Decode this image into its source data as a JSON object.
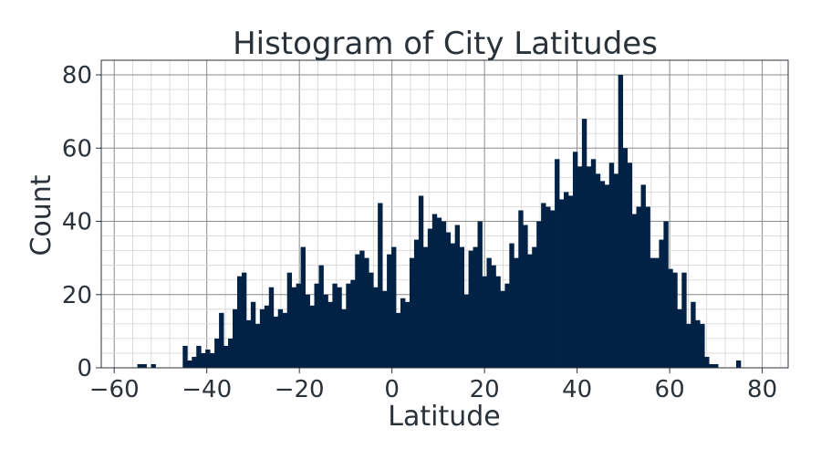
{
  "chart_data": {
    "type": "bar",
    "title": "Histogram of City Latitudes",
    "xlabel": "Latitude",
    "ylabel": "Count",
    "xlim": [
      -62.8,
      85.6
    ],
    "ylim": [
      0,
      84
    ],
    "xticks": [
      -60,
      -40,
      -20,
      0,
      20,
      40,
      60,
      80
    ],
    "xtick_labels": [
      "−60",
      "−40",
      "−20",
      "0",
      "20",
      "40",
      "60",
      "80"
    ],
    "yticks": [
      0,
      20,
      40,
      60,
      80
    ],
    "ytick_labels": [
      "0",
      "20",
      "40",
      "60",
      "80"
    ],
    "grid": true,
    "bar_color": "#012245",
    "bins": {
      "start": -55.0,
      "width": 0.98,
      "counts": [
        1,
        1,
        0,
        1,
        0,
        0,
        0,
        0,
        0,
        0,
        6,
        2,
        3,
        6,
        4,
        5,
        4,
        8,
        15,
        6,
        8,
        16,
        25,
        26,
        13,
        18,
        12,
        16,
        17,
        22,
        14,
        16,
        15,
        26,
        22,
        23,
        33,
        20,
        17,
        23,
        28,
        20,
        18,
        23,
        22,
        16,
        23,
        24,
        31,
        32,
        30,
        26,
        22,
        45,
        21,
        31,
        33,
        15,
        19,
        18,
        30,
        35,
        47,
        33,
        38,
        42,
        41,
        40,
        37,
        34,
        39,
        33,
        20,
        32,
        33,
        40,
        25,
        30,
        28,
        25,
        21,
        23,
        34,
        30,
        43,
        39,
        31,
        33,
        40,
        45,
        44,
        43,
        57,
        46,
        48,
        47,
        59,
        55,
        68,
        55,
        57,
        53,
        51,
        50,
        56,
        53,
        80,
        60,
        56,
        42,
        44,
        50,
        44,
        30,
        30,
        35,
        40,
        27,
        26,
        16,
        26,
        12,
        18,
        13,
        12,
        3,
        1,
        1,
        0,
        0,
        0,
        0,
        2
      ]
    }
  }
}
